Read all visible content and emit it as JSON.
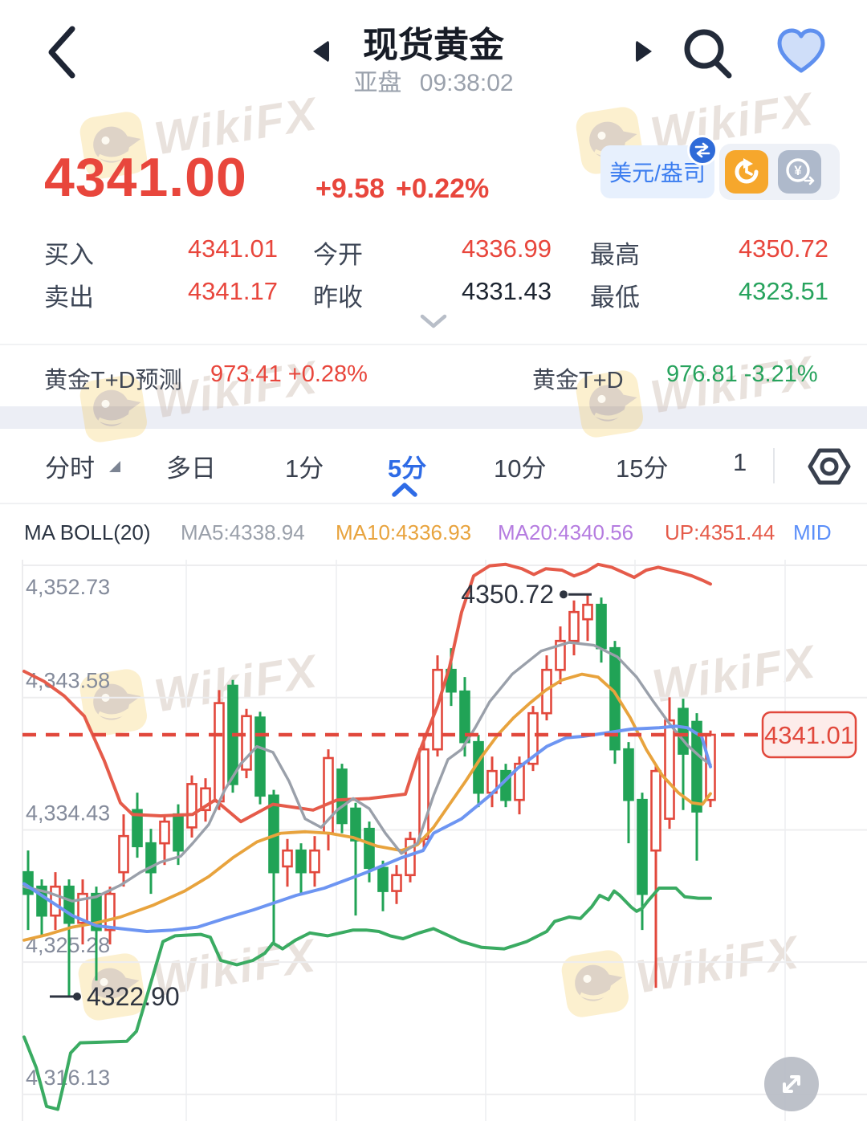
{
  "header": {
    "title": "现货黄金",
    "session": "亚盘",
    "time": "09:38:02"
  },
  "price_block": {
    "price": "4341.00",
    "change": "+9.58",
    "change_pct": "+0.22%",
    "unit_badge": "美元/盎司",
    "accent_red": "#e8463c"
  },
  "stats": {
    "items": [
      {
        "label": "买入",
        "value": "4341.01",
        "color": "#e8463c"
      },
      {
        "label": "今开",
        "value": "4336.99",
        "color": "#e8463c"
      },
      {
        "label": "最高",
        "value": "4350.72",
        "color": "#e8463c"
      },
      {
        "label": "卖出",
        "value": "4341.17",
        "color": "#e8463c"
      },
      {
        "label": "昨收",
        "value": "4331.43",
        "color": "#1c2430"
      },
      {
        "label": "最低",
        "value": "4323.51",
        "color": "#27a35d"
      }
    ]
  },
  "td_row": {
    "left_label": "黄金T+D预测",
    "left_value": "973.41 +0.28%",
    "left_color": "#e8463c",
    "right_label": "黄金T+D",
    "right_value": "976.81 -3.21%",
    "right_color": "#27a35d"
  },
  "tabs": {
    "items": [
      {
        "label": "分时",
        "active": false
      },
      {
        "label": "多日",
        "active": false
      },
      {
        "label": "1分",
        "active": false
      },
      {
        "label": "5分",
        "active": true
      },
      {
        "label": "10分",
        "active": false
      },
      {
        "label": "15分",
        "active": false
      },
      {
        "label": "1",
        "active": false
      }
    ]
  },
  "legend": {
    "items": [
      {
        "label": "MA BOLL(20)",
        "color": "#2b3442"
      },
      {
        "label": "MA5:4338.94",
        "color": "#9aa0aa"
      },
      {
        "label": "MA10:4336.93",
        "color": "#e8a33d"
      },
      {
        "label": "MA20:4340.56",
        "color": "#b57ce0"
      },
      {
        "label": "UP:4351.44",
        "color": "#e55b4a"
      },
      {
        "label": "MID",
        "color": "#5b8ff9"
      }
    ]
  },
  "watermark": {
    "text": "WikiFX"
  },
  "chart_data": {
    "type": "candlestick",
    "interval": "5min",
    "up_color": "#e2483c",
    "down_color": "#21a356",
    "mapping": {
      "y0": 915,
      "p0": 4341.01,
      "ppu": 18,
      "x0": 35,
      "dx": 17
    },
    "ylim": [
      4313.8,
      4353.1
    ],
    "y_axis": [
      {
        "price": 4352.73,
        "label": "4,352.73"
      },
      {
        "price": 4343.58,
        "label": "4,343.58"
      },
      {
        "price": 4334.43,
        "label": "4,334.43"
      },
      {
        "price": 4325.28,
        "label": "4,325.28"
      },
      {
        "price": 4316.13,
        "label": "4,316.13"
      }
    ],
    "v_gridlines": [
      232,
      419,
      605,
      791,
      978
    ],
    "current_price": {
      "price": 4341.01,
      "label": "4341.01"
    },
    "annotations": {
      "high": {
        "label": "4350.72",
        "price": 4350.72
      },
      "low": {
        "label": "4322.90",
        "price": 4322.9
      }
    },
    "candles": [
      [
        4331.5,
        4333.0,
        4327.5,
        4330.0
      ],
      [
        4330.5,
        4331.0,
        4327.0,
        4328.5
      ],
      [
        4328.5,
        4331.5,
        4327.5,
        4330.5
      ],
      [
        4330.5,
        4331.0,
        4322.9,
        4328.0
      ],
      [
        4328.0,
        4331.0,
        4326.5,
        4330.0
      ],
      [
        4330.0,
        4330.5,
        4324.0,
        4327.5
      ],
      [
        4327.5,
        4330.5,
        4326.5,
        4330.0
      ],
      [
        4331.5,
        4335.5,
        4330.5,
        4334.0
      ],
      [
        4335.8,
        4337.0,
        4332.5,
        4333.3
      ],
      [
        4333.5,
        4334.5,
        4330.0,
        4331.5
      ],
      [
        4333.5,
        4335.5,
        4332.0,
        4335.0
      ],
      [
        4335.5,
        4336.2,
        4332.0,
        4333.0
      ],
      [
        4334.6,
        4338.2,
        4333.9,
        4337.6
      ],
      [
        4335.8,
        4338.0,
        4335.0,
        4337.3
      ],
      [
        4336.4,
        4344.1,
        4335.8,
        4343.2
      ],
      [
        4344.4,
        4344.8,
        4337.0,
        4337.6
      ],
      [
        4338.6,
        4342.8,
        4338.0,
        4342.3
      ],
      [
        4342.2,
        4342.6,
        4336.2,
        4336.8
      ],
      [
        4336.8,
        4337.2,
        4326.5,
        4331.5
      ],
      [
        4331.9,
        4333.8,
        4330.5,
        4333.0
      ],
      [
        4333.0,
        4333.5,
        4330.0,
        4331.5
      ],
      [
        4331.5,
        4334.0,
        4330.5,
        4333.0
      ],
      [
        4334.2,
        4340.0,
        4333.0,
        4339.4
      ],
      [
        4338.6,
        4339.0,
        4334.2,
        4334.9
      ],
      [
        4335.9,
        4336.3,
        4328.5,
        4333.7
      ],
      [
        4334.5,
        4335.0,
        4330.8,
        4331.8
      ],
      [
        4331.8,
        4332.3,
        4328.8,
        4330.2
      ],
      [
        4330.2,
        4332.0,
        4329.3,
        4331.3
      ],
      [
        4331.3,
        4334.3,
        4330.8,
        4333.8
      ],
      [
        4333.8,
        4341.0,
        4333.2,
        4340.0
      ],
      [
        4340.0,
        4346.5,
        4339.5,
        4345.5
      ],
      [
        4345.5,
        4347.0,
        4343.0,
        4344.0
      ],
      [
        4344.0,
        4345.0,
        4339.5,
        4340.5
      ],
      [
        4340.5,
        4341.0,
        4336.0,
        4337.0
      ],
      [
        4337.0,
        4339.5,
        4336.0,
        4338.5
      ],
      [
        4338.5,
        4339.0,
        4336.0,
        4336.5
      ],
      [
        4336.5,
        4339.5,
        4335.5,
        4339.0
      ],
      [
        4339.0,
        4343.0,
        4338.5,
        4342.5
      ],
      [
        4342.5,
        4346.5,
        4342.0,
        4345.5
      ],
      [
        4345.5,
        4348.5,
        4344.5,
        4347.5
      ],
      [
        4347.5,
        4350.3,
        4346.5,
        4349.5
      ],
      [
        4349.0,
        4350.72,
        4347.5,
        4350.0
      ],
      [
        4350.0,
        4350.5,
        4346.0,
        4347.0
      ],
      [
        4347.0,
        4347.5,
        4339.0,
        4340.0
      ],
      [
        4340.0,
        4340.5,
        4333.5,
        4336.5
      ],
      [
        4336.5,
        4337.0,
        4327.5,
        4330.0
      ],
      [
        4333.0,
        4339.0,
        4323.5,
        4338.5
      ],
      [
        4335.2,
        4343.6,
        4334.5,
        4342.0
      ],
      [
        4342.8,
        4343.5,
        4335.8,
        4339.7
      ],
      [
        4341.9,
        4342.5,
        4332.3,
        4335.7
      ],
      [
        4336.5,
        4341.3,
        4336.0,
        4341.01
      ]
    ],
    "lines": {
      "upper": {
        "name": "BOLL UP",
        "color": "#e55b4a",
        "width": 4,
        "points": [
          [
            30,
            4345.4
          ],
          [
            55,
            4344.7
          ],
          [
            80,
            4343.7
          ],
          [
            105,
            4342.3
          ],
          [
            130,
            4339.2
          ],
          [
            150,
            4336.3
          ],
          [
            165,
            4335.5
          ],
          [
            200,
            4335.4
          ],
          [
            240,
            4335.5
          ],
          [
            268,
            4336.5
          ],
          [
            300,
            4335.0
          ],
          [
            340,
            4336.2
          ],
          [
            390,
            4335.8
          ],
          [
            420,
            4336.5
          ],
          [
            460,
            4336.6
          ],
          [
            505,
            4336.9
          ],
          [
            520,
            4339.5
          ],
          [
            545,
            4343.0
          ],
          [
            560,
            4345.7
          ],
          [
            575,
            4349.5
          ],
          [
            590,
            4352.0
          ],
          [
            610,
            4352.7
          ],
          [
            630,
            4352.8
          ],
          [
            650,
            4352.5
          ],
          [
            665,
            4352.1
          ],
          [
            680,
            4352.5
          ],
          [
            700,
            4352.4
          ],
          [
            715,
            4352.0
          ],
          [
            730,
            4352.3
          ],
          [
            745,
            4352.8
          ],
          [
            762,
            4352.6
          ],
          [
            778,
            4352.2
          ],
          [
            790,
            4351.9
          ],
          [
            805,
            4352.4
          ],
          [
            820,
            4352.6
          ],
          [
            835,
            4352.4
          ],
          [
            850,
            4352.2
          ],
          [
            862,
            4352.0
          ],
          [
            875,
            4351.7
          ],
          [
            885,
            4351.44
          ]
        ]
      },
      "lower": {
        "name": "BOLL LOW",
        "color": "#3aab62",
        "width": 4,
        "points": [
          [
            30,
            4320.1
          ],
          [
            45,
            4318.0
          ],
          [
            58,
            4315.3
          ],
          [
            72,
            4315.1
          ],
          [
            80,
            4317.0
          ],
          [
            88,
            4319.0
          ],
          [
            100,
            4319.7
          ],
          [
            158,
            4319.8
          ],
          [
            170,
            4320.5
          ],
          [
            185,
            4323.3
          ],
          [
            203,
            4326.7
          ],
          [
            218,
            4327.1
          ],
          [
            250,
            4327.2
          ],
          [
            262,
            4327.0
          ],
          [
            275,
            4325.4
          ],
          [
            295,
            4325.1
          ],
          [
            315,
            4325.4
          ],
          [
            330,
            4325.9
          ],
          [
            340,
            4326.6
          ],
          [
            352,
            4326.2
          ],
          [
            368,
            4326.8
          ],
          [
            386,
            4327.3
          ],
          [
            408,
            4327.1
          ],
          [
            424,
            4327.3
          ],
          [
            440,
            4327.5
          ],
          [
            456,
            4327.5
          ],
          [
            472,
            4327.4
          ],
          [
            486,
            4327.1
          ],
          [
            502,
            4326.9
          ],
          [
            522,
            4327.3
          ],
          [
            540,
            4327.6
          ],
          [
            575,
            4326.7
          ],
          [
            600,
            4326.3
          ],
          [
            628,
            4326.2
          ],
          [
            656,
            4326.7
          ],
          [
            681,
            4327.4
          ],
          [
            691,
            4328.1
          ],
          [
            709,
            4328.4
          ],
          [
            723,
            4328.3
          ],
          [
            737,
            4329.1
          ],
          [
            747,
            4329.9
          ],
          [
            758,
            4329.6
          ],
          [
            765,
            4330.2
          ],
          [
            772,
            4329.9
          ],
          [
            786,
            4329.1
          ],
          [
            793,
            4328.8
          ],
          [
            800,
            4329.0
          ],
          [
            807,
            4329.5
          ],
          [
            821,
            4330.4
          ],
          [
            842,
            4330.4
          ],
          [
            853,
            4329.8
          ],
          [
            870,
            4329.7
          ],
          [
            885,
            4329.7
          ]
        ]
      },
      "mid": {
        "name": "BOLL MID",
        "color": "#6d95f2",
        "width": 4,
        "points": [
          [
            30,
            4330.7
          ],
          [
            60,
            4329.6
          ],
          [
            90,
            4328.5
          ],
          [
            120,
            4327.8
          ],
          [
            150,
            4327.6
          ],
          [
            183,
            4327.4
          ],
          [
            215,
            4327.5
          ],
          [
            246,
            4327.7
          ],
          [
            280,
            4328.3
          ],
          [
            316,
            4328.9
          ],
          [
            369,
            4329.9
          ],
          [
            404,
            4330.4
          ],
          [
            457,
            4331.5
          ],
          [
            500,
            4332.5
          ],
          [
            527,
            4333.0
          ],
          [
            540,
            4334.2
          ],
          [
            575,
            4335.2
          ],
          [
            610,
            4336.8
          ],
          [
            645,
            4338.7
          ],
          [
            681,
            4340.2
          ],
          [
            705,
            4340.8
          ],
          [
            726,
            4340.9
          ],
          [
            751,
            4341.1
          ],
          [
            786,
            4341.4
          ],
          [
            821,
            4341.5
          ],
          [
            842,
            4341.6
          ],
          [
            856,
            4341.5
          ],
          [
            874,
            4340.9
          ],
          [
            885,
            4338.8
          ]
        ]
      },
      "ma5": {
        "name": "MA5",
        "color": "#9aa0aa",
        "width": 3.4,
        "points": [
          [
            30,
            4330.5
          ],
          [
            60,
            4330.1
          ],
          [
            90,
            4329.5
          ],
          [
            120,
            4329.8
          ],
          [
            150,
            4330.6
          ],
          [
            175,
            4331.5
          ],
          [
            200,
            4332.2
          ],
          [
            225,
            4332.6
          ],
          [
            240,
            4333.5
          ],
          [
            260,
            4334.8
          ],
          [
            280,
            4337.2
          ],
          [
            300,
            4339.0
          ],
          [
            320,
            4340.2
          ],
          [
            340,
            4339.8
          ],
          [
            360,
            4337.8
          ],
          [
            380,
            4335.2
          ],
          [
            400,
            4334.6
          ],
          [
            420,
            4335.8
          ],
          [
            440,
            4336.6
          ],
          [
            460,
            4335.9
          ],
          [
            480,
            4334.2
          ],
          [
            500,
            4332.8
          ],
          [
            520,
            4333.5
          ],
          [
            540,
            4336.8
          ],
          [
            558,
            4339.3
          ],
          [
            575,
            4340.0
          ],
          [
            592,
            4341.5
          ],
          [
            610,
            4343.3
          ],
          [
            638,
            4345.2
          ],
          [
            674,
            4346.8
          ],
          [
            709,
            4347.4
          ],
          [
            740,
            4347.2
          ],
          [
            769,
            4346.4
          ],
          [
            793,
            4345.0
          ],
          [
            814,
            4343.3
          ],
          [
            835,
            4341.7
          ],
          [
            856,
            4340.3
          ],
          [
            874,
            4339.4
          ],
          [
            885,
            4338.94
          ]
        ]
      },
      "ma10": {
        "name": "MA10",
        "color": "#e8a33d",
        "width": 3.8,
        "points": [
          [
            30,
            4326.8
          ],
          [
            60,
            4327.2
          ],
          [
            90,
            4327.7
          ],
          [
            120,
            4328.0
          ],
          [
            150,
            4328.4
          ],
          [
            190,
            4329.2
          ],
          [
            230,
            4330.2
          ],
          [
            260,
            4331.2
          ],
          [
            290,
            4332.5
          ],
          [
            320,
            4333.6
          ],
          [
            350,
            4334.2
          ],
          [
            380,
            4334.3
          ],
          [
            410,
            4334.2
          ],
          [
            440,
            4333.9
          ],
          [
            470,
            4333.3
          ],
          [
            500,
            4333.0
          ],
          [
            520,
            4333.4
          ],
          [
            540,
            4334.6
          ],
          [
            560,
            4336.2
          ],
          [
            580,
            4337.8
          ],
          [
            600,
            4339.5
          ],
          [
            620,
            4341.0
          ],
          [
            640,
            4342.2
          ],
          [
            660,
            4343.2
          ],
          [
            680,
            4344.1
          ],
          [
            700,
            4344.8
          ],
          [
            725,
            4345.2
          ],
          [
            745,
            4345.0
          ],
          [
            765,
            4344.0
          ],
          [
            785,
            4342.2
          ],
          [
            805,
            4340.0
          ],
          [
            825,
            4338.2
          ],
          [
            845,
            4337.0
          ],
          [
            862,
            4336.3
          ],
          [
            875,
            4336.2
          ],
          [
            885,
            4336.93
          ]
        ]
      }
    }
  },
  "fab": {
    "name": "expand-chart"
  }
}
